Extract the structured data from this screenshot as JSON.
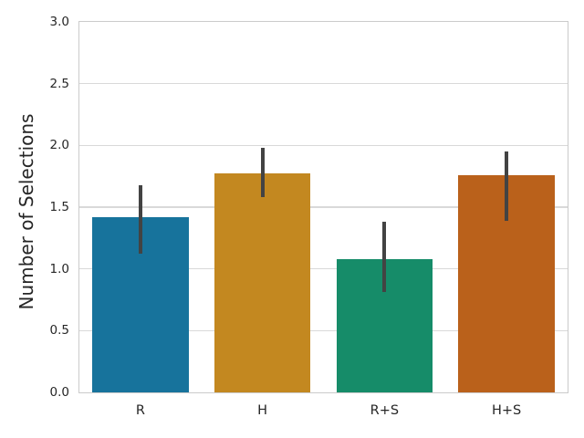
{
  "chart_data": {
    "type": "bar",
    "title": "",
    "xlabel": "",
    "ylabel": "Number of Selections",
    "categories": [
      "R",
      "H",
      "R+S",
      "H+S"
    ],
    "values": [
      1.42,
      1.77,
      1.08,
      1.76
    ],
    "error_low": [
      1.12,
      1.58,
      0.81,
      1.39
    ],
    "error_high": [
      1.68,
      1.98,
      1.38,
      1.95
    ],
    "ylim": [
      0,
      3.0
    ],
    "yticks": [
      0.0,
      0.5,
      1.0,
      1.5,
      2.0,
      2.5,
      3.0
    ],
    "ytick_labels": [
      "0.0",
      "0.5",
      "1.0",
      "1.5",
      "2.0",
      "2.5",
      "3.0"
    ],
    "grid": true,
    "legend_position": "none",
    "colors": {
      "bars": [
        "#17739c",
        "#c38820",
        "#168c69",
        "#ba611b"
      ],
      "error_bar": "#434343",
      "grid": "#d9d9d9",
      "spine": "#cbcbcb",
      "text": "#262626",
      "background": "#ffffff"
    }
  }
}
